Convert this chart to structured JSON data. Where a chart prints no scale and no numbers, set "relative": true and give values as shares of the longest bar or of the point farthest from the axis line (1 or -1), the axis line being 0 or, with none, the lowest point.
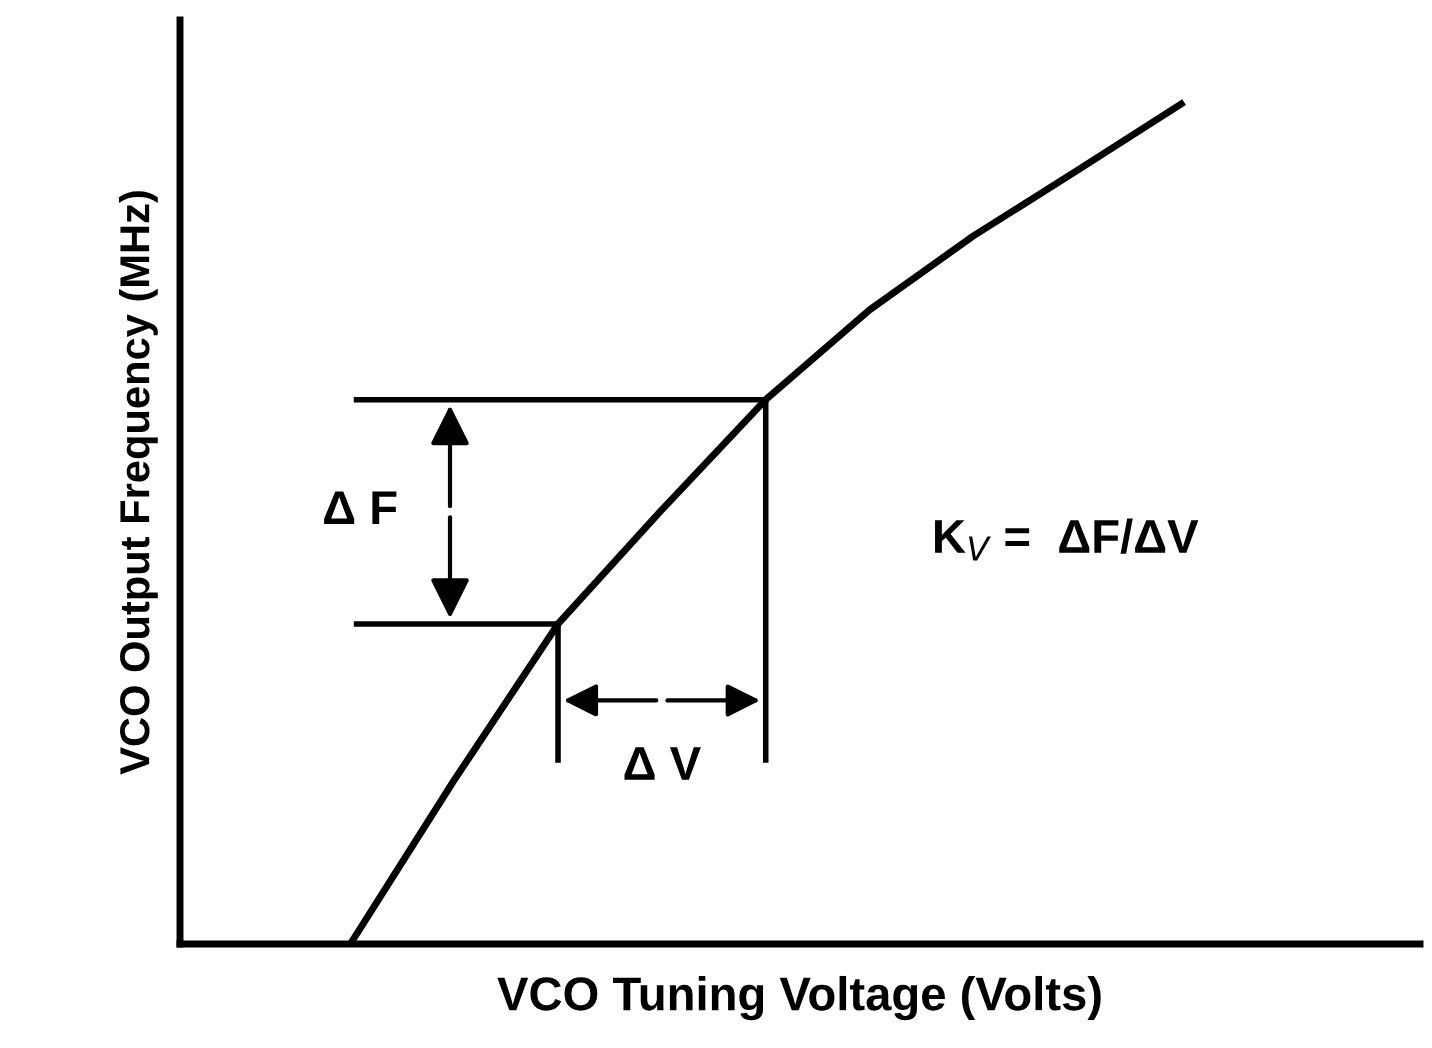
{
  "chart_data": {
    "type": "line",
    "relative": true,
    "xlabel": "VCO Tuning Voltage (Volts)",
    "ylabel": "VCO Output Frequency (MHz)",
    "categories": [
      null,
      null,
      null,
      null,
      null,
      null,
      null,
      null,
      null
    ],
    "series": [
      {
        "color": "#000000",
        "values": [
          0,
          0.195,
          0.381,
          0.517,
          0.648,
          0.755,
          0.843,
          0.921,
          1
        ]
      }
    ],
    "annotations": [
      "Δ F",
      "Δ V",
      "K$_{V}$ =  ΔF/ΔV"
    ],
    "ref_lines": [
      {
        "axis": "y",
        "value": 0.381,
        "color": "#000000",
        "line_style": "solid"
      },
      {
        "axis": "y",
        "value": 0.648,
        "color": "#000000",
        "line_style": "solid"
      }
    ],
    "marker": "none",
    "line_style": "solid",
    "grid": false,
    "legend": false
  }
}
